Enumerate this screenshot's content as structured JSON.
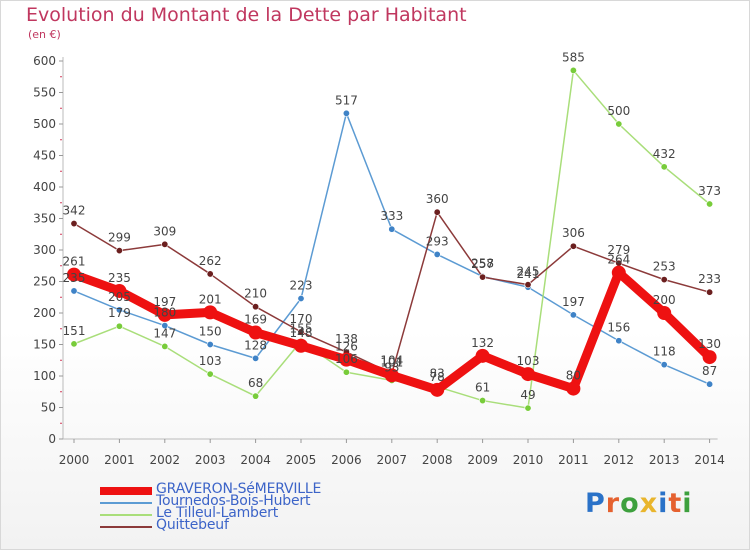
{
  "header": {
    "title": "Evolution du Montant de la Dette par Habitant",
    "unit": "(en €)"
  },
  "logo": {
    "text": "Proxiti",
    "colors": [
      "#2a72c8",
      "#e5612f",
      "#3da03d",
      "#e9b52c",
      "#2a72c8",
      "#e5612f",
      "#3da03d"
    ]
  },
  "chart_data": {
    "type": "line",
    "title": "Evolution du Montant de la Dette par Habitant",
    "ylabel": "(en €)",
    "xlabel": "",
    "ylim": [
      0,
      600
    ],
    "yticks": [
      0,
      50,
      100,
      150,
      200,
      250,
      300,
      350,
      400,
      450,
      500,
      550,
      600
    ],
    "x": [
      "2000",
      "2001",
      "2002",
      "2003",
      "2004",
      "2005",
      "2006",
      "2007",
      "2008",
      "2009",
      "2010",
      "2011",
      "2012",
      "2013",
      "2014"
    ],
    "grid": false,
    "legend_position": "bottom-left",
    "series": [
      {
        "name": "GRAVERON-SéMERVILLE",
        "color": "#ee1111",
        "marker_color": "#ee1111",
        "emphasis": true,
        "values": [
          261,
          235,
          197,
          201,
          169,
          148,
          126,
          101,
          78,
          132,
          103,
          80,
          264,
          200,
          130
        ]
      },
      {
        "name": "Tournedos-Bois-Hubert",
        "color": "#5c9bd3",
        "marker_color": "#3f83c7",
        "emphasis": false,
        "values": [
          235,
          205,
          180,
          150,
          128,
          223,
          517,
          333,
          293,
          258,
          241,
          197,
          156,
          118,
          87
        ]
      },
      {
        "name": "Le Tilleul-Lambert",
        "color": "#a9de7a",
        "marker_color": "#78cc3a",
        "emphasis": false,
        "values": [
          151,
          179,
          147,
          103,
          68,
          155,
          106,
          93,
          83,
          61,
          49,
          585,
          500,
          432,
          373
        ]
      },
      {
        "name": "Quittebeuf",
        "color": "#8c3a3a",
        "marker_color": "#6b1f1f",
        "emphasis": false,
        "values": [
          342,
          299,
          309,
          262,
          210,
          170,
          138,
          104,
          360,
          257,
          245,
          306,
          279,
          253,
          233
        ]
      }
    ]
  }
}
